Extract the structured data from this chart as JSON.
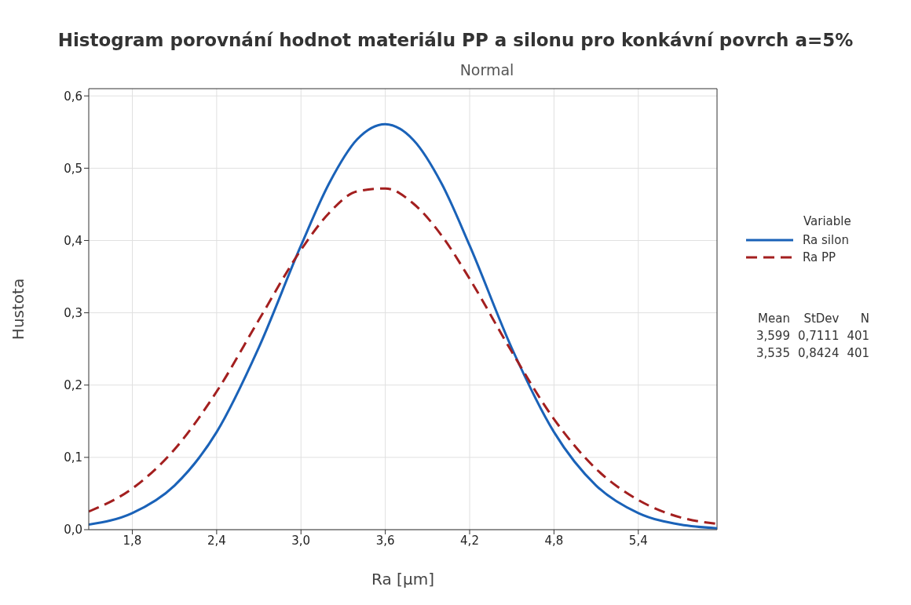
{
  "chart_data": {
    "type": "line",
    "title": "Histogram porovnání hodnot materiálu PP a silonu pro konkávní povrch a=5%",
    "subtitle": "Normal",
    "xlabel": "Ra [µm]",
    "ylabel": "Hustota",
    "legend_title": "Variable",
    "legend": "right",
    "grid": true,
    "marker": "none",
    "x": [
      1.49,
      1.8,
      2.1,
      2.4,
      2.7,
      3.0,
      3.2,
      3.4,
      3.6,
      3.8,
      4.0,
      4.2,
      4.5,
      4.8,
      5.1,
      5.4,
      5.7,
      5.96
    ],
    "series": [
      {
        "name": "Ra silon",
        "color": "#1a62b8",
        "line_style": "solid",
        "values": [
          0.007,
          0.023,
          0.061,
          0.135,
          0.252,
          0.393,
          0.479,
          0.54,
          0.561,
          0.539,
          0.479,
          0.393,
          0.251,
          0.135,
          0.061,
          0.023,
          0.007,
          0.002
        ]
      },
      {
        "name": "Ra PP",
        "color": "#a31f1f",
        "line_style": "dashed",
        "values": [
          0.025,
          0.057,
          0.111,
          0.191,
          0.29,
          0.387,
          0.438,
          0.468,
          0.472,
          0.451,
          0.407,
          0.347,
          0.246,
          0.153,
          0.084,
          0.041,
          0.017,
          0.008
        ]
      }
    ],
    "xlim": [
      1.49,
      5.96
    ],
    "ylim": [
      0,
      0.61
    ],
    "xticks": [
      {
        "value": 1.8,
        "label": "1,8"
      },
      {
        "value": 2.4,
        "label": "2,4"
      },
      {
        "value": 3.0,
        "label": "3,0"
      },
      {
        "value": 3.6,
        "label": "3,6"
      },
      {
        "value": 4.2,
        "label": "4,2"
      },
      {
        "value": 4.8,
        "label": "4,8"
      },
      {
        "value": 5.4,
        "label": "5,4"
      }
    ],
    "yticks": [
      {
        "value": 0,
        "label": "0,0"
      },
      {
        "value": 0.1,
        "label": "0,1"
      },
      {
        "value": 0.2,
        "label": "0,2"
      },
      {
        "value": 0.3,
        "label": "0,3"
      },
      {
        "value": 0.4,
        "label": "0,4"
      },
      {
        "value": 0.5,
        "label": "0,5"
      },
      {
        "value": 0.6,
        "label": "0,6"
      }
    ],
    "annotations": [
      "Mean StDev N",
      "3,599 0,7111 401",
      "3,535 0,8424 401"
    ]
  }
}
